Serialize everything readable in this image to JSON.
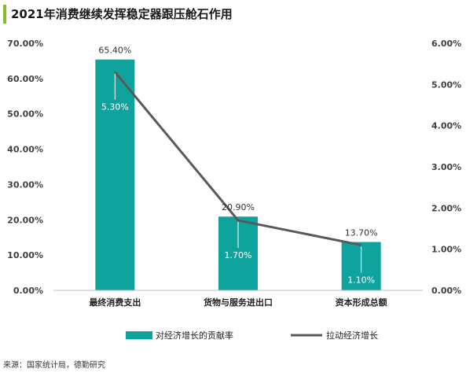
{
  "title": "2021年消费继续发挥稳定器跟压舱石作用",
  "source": "来源：国家统计局，德勤研究",
  "chart_data": {
    "type": "bar+line",
    "categories": [
      "最终消费支出",
      "货物与服务进出口",
      "资本形成总额"
    ],
    "series": [
      {
        "name": "对经济增长的贡献率",
        "type": "bar",
        "axis": "left",
        "values": [
          65.4,
          20.9,
          13.7
        ],
        "labels": [
          "65.40%",
          "20.90%",
          "13.70%"
        ],
        "color": "#0fa39e"
      },
      {
        "name": "拉动经济增长",
        "type": "line",
        "axis": "right",
        "values": [
          5.3,
          1.7,
          1.1
        ],
        "labels": [
          "5.30%",
          "1.70%",
          "1.10%"
        ],
        "color": "#595959"
      }
    ],
    "y_left": {
      "min": 0,
      "max": 70,
      "ticks": [
        "0.00%",
        "10.00%",
        "20.00%",
        "30.00%",
        "40.00%",
        "50.00%",
        "60.00%",
        "70.00%"
      ]
    },
    "y_right": {
      "min": 0,
      "max": 6,
      "ticks": [
        "0.00%",
        "1.00%",
        "2.00%",
        "3.00%",
        "4.00%",
        "5.00%",
        "6.00%"
      ]
    },
    "grid": false,
    "legend_position": "bottom"
  }
}
